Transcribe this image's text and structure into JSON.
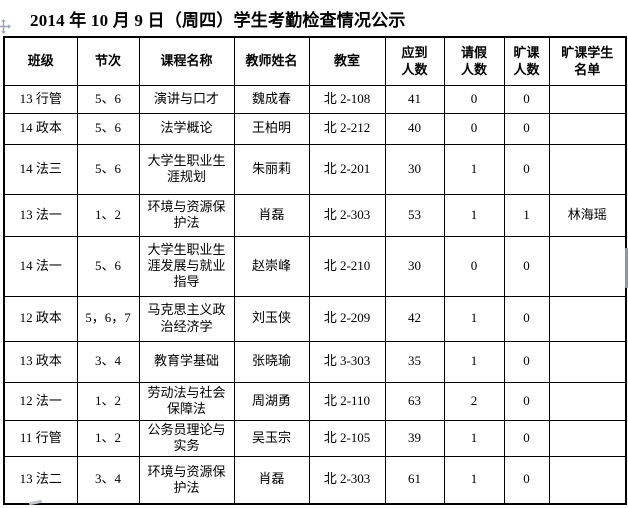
{
  "title": "2014 年 10 月 9 日（周四）学生考勤检查情况公示",
  "table": {
    "headers": [
      {
        "id": "class",
        "label": "班级"
      },
      {
        "id": "period",
        "label": "节次"
      },
      {
        "id": "course",
        "label": "课程名称"
      },
      {
        "id": "teacher",
        "label": "教师姓名"
      },
      {
        "id": "room",
        "label": "教室"
      },
      {
        "id": "expected",
        "label": "应到\n人数"
      },
      {
        "id": "leave",
        "label": "请假\n人数"
      },
      {
        "id": "absent",
        "label": "旷课\n人数"
      },
      {
        "id": "absentees",
        "label": "旷课学生\n名单"
      }
    ],
    "rows": [
      [
        "13 行管",
        "5、6",
        "演讲与口才",
        "魏成春",
        "北 2-108",
        "41",
        "0",
        "0",
        ""
      ],
      [
        "14 政本",
        "5、6",
        "法学概论",
        "王柏明",
        "北 2-212",
        "40",
        "0",
        "0",
        ""
      ],
      [
        "14 法三",
        "5、6",
        "大学生职业生涯规划",
        "朱丽莉",
        "北 2-201",
        "30",
        "1",
        "0",
        ""
      ],
      [
        "13 法一",
        "1、2",
        "环境与资源保护法",
        "肖磊",
        "北 2-303",
        "53",
        "1",
        "1",
        "林海瑶"
      ],
      [
        "14 法一",
        "5、6",
        "大学生职业生涯发展与就业指导",
        "赵崇峰",
        "北 2-210",
        "30",
        "0",
        "0",
        ""
      ],
      [
        "12 政本",
        "5，6，7",
        "马克思主义政治经济学",
        "刘玉侠",
        "北 2-209",
        "42",
        "1",
        "0",
        ""
      ],
      [
        "13 政本",
        "3、4",
        "教育学基础",
        "张晓瑜",
        "北 3-303",
        "35",
        "1",
        "0",
        ""
      ],
      [
        "12 法一",
        "1、2",
        "劳动法与社会保障法",
        "周湖勇",
        "北 2-110",
        "63",
        "2",
        "0",
        ""
      ],
      [
        "11 行管",
        "1、2",
        "公务员理论与实务",
        "吴玉宗",
        "北 2-105",
        "39",
        "1",
        "0",
        ""
      ],
      [
        "13 法二",
        "3、4",
        "环境与资源保护法",
        "肖磊",
        "北 2-303",
        "61",
        "1",
        "0",
        ""
      ]
    ]
  },
  "icons": {
    "move_handle": "four-headed-move-arrow",
    "scrollbar_thumb": "vertical-scrollbar-fragment",
    "cursor_artifact": "gray-cursor-mark"
  },
  "colors": {
    "table_border": "#000000",
    "text": "#000000",
    "scrollbar": "#8b97a8",
    "handle_icon": "#8a93a6"
  }
}
